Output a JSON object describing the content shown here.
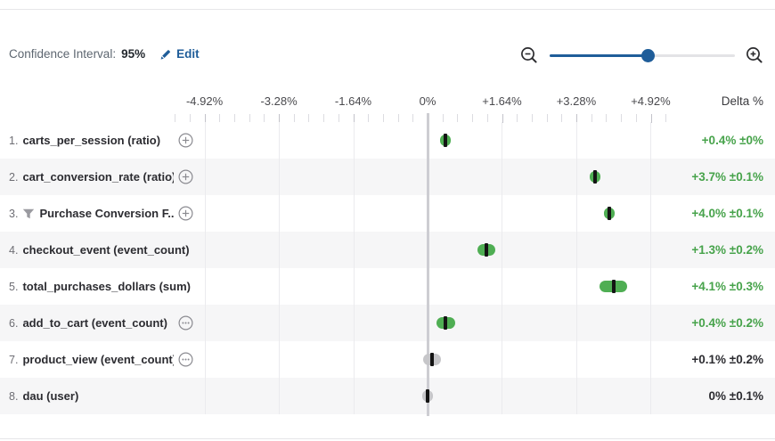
{
  "header": {
    "ci_label": "Confidence Interval:",
    "ci_value": "95%",
    "edit_label": "Edit"
  },
  "slider": {
    "zoom_out_icon": "magnifier-minus-icon",
    "zoom_in_icon": "magnifier-plus-icon",
    "position_pct": 53
  },
  "chart_data": {
    "type": "interval-dot",
    "delta_header": "Delta %",
    "axis_tick_labels": [
      "-4.92%",
      "-3.28%",
      "-1.64%",
      "0%",
      "+1.64%",
      "+3.28%",
      "+4.92%"
    ],
    "axis_tick_values": [
      -4.92,
      -3.28,
      -1.64,
      0,
      1.64,
      3.28,
      4.92
    ],
    "xlim": [
      -5.6,
      5.25
    ],
    "grid": true,
    "rows": [
      {
        "rank": "1.",
        "name": "carts_per_session (ratio)",
        "left_icon": null,
        "right_icon": "plus-circle",
        "delta": 0.4,
        "ci": 0.0,
        "delta_label": "+0.4% ±0%",
        "highlight": true
      },
      {
        "rank": "2.",
        "name": "cart_conversion_rate (ratio)",
        "left_icon": null,
        "right_icon": "plus-circle",
        "delta": 3.7,
        "ci": 0.1,
        "delta_label": "+3.7% ±0.1%",
        "highlight": true
      },
      {
        "rank": "3.",
        "name": "Purchase Conversion F...",
        "left_icon": "funnel",
        "right_icon": "plus-circle",
        "delta": 4.0,
        "ci": 0.1,
        "delta_label": "+4.0% ±0.1%",
        "highlight": true
      },
      {
        "rank": "4.",
        "name": "checkout_event (event_count)",
        "left_icon": null,
        "right_icon": null,
        "delta": 1.3,
        "ci": 0.2,
        "delta_label": "+1.3% ±0.2%",
        "highlight": true
      },
      {
        "rank": "5.",
        "name": "total_purchases_dollars (sum)",
        "left_icon": null,
        "right_icon": null,
        "delta": 4.1,
        "ci": 0.3,
        "delta_label": "+4.1% ±0.3%",
        "highlight": true
      },
      {
        "rank": "6.",
        "name": "add_to_cart (event_count)",
        "left_icon": null,
        "right_icon": "ellipsis-circle",
        "delta": 0.4,
        "ci": 0.2,
        "delta_label": "+0.4% ±0.2%",
        "highlight": true
      },
      {
        "rank": "7.",
        "name": "product_view (event_count)",
        "left_icon": null,
        "right_icon": "ellipsis-circle",
        "delta": 0.1,
        "ci": 0.2,
        "delta_label": "+0.1% ±0.2%",
        "highlight": false
      },
      {
        "rank": "8.",
        "name": "dau (user)",
        "left_icon": null,
        "right_icon": null,
        "delta": 0.0,
        "ci": 0.1,
        "delta_label": "0% ±0.1%",
        "highlight": false
      }
    ]
  },
  "colors": {
    "accent_blue": "#1f5d99",
    "positive_text_green": "#47a34b",
    "marker_green": "#4fae53",
    "marker_neutral_gray": "#c6c6c9",
    "marker_bar_black": "#141414",
    "neutral_text_dark": "#2c2c31"
  }
}
